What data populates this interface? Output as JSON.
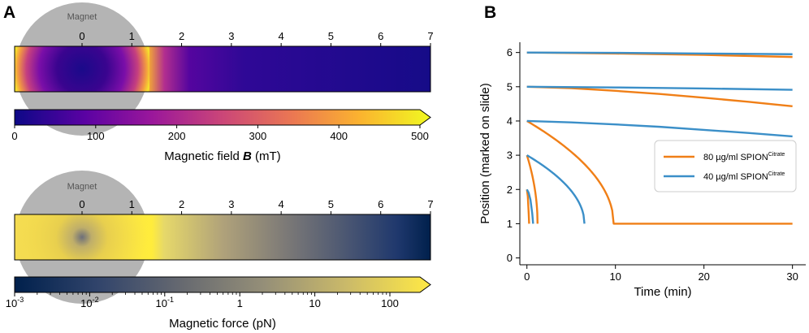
{
  "panel_labels": {
    "a": "A",
    "b": "B"
  },
  "colors": {
    "orange": "#f07f17",
    "blue": "#3b8fc8",
    "magnet_gray": "#b4b4b4",
    "plasma": [
      "#0d0887",
      "#5b02a3",
      "#9a179b",
      "#cb4678",
      "#eb7852",
      "#fbb32f",
      "#f0f921"
    ],
    "cividis": [
      "#00204c",
      "#31446b",
      "#666970",
      "#958f78",
      "#cbba69",
      "#ffe945"
    ]
  },
  "panel_a_top": {
    "magnet_label": "Magnet",
    "position_ticks": [
      "0",
      "1",
      "2",
      "3",
      "4",
      "5",
      "6",
      "7"
    ],
    "colorbar_ticks": [
      "0",
      "100",
      "200",
      "300",
      "400",
      "500"
    ],
    "colorbar_label_prefix": "Magnetic field ",
    "colorbar_label_symbol": "B",
    "colorbar_label_suffix": " (mT)"
  },
  "panel_a_bottom": {
    "magnet_label": "Magnet",
    "position_ticks": [
      "0",
      "1",
      "2",
      "3",
      "4",
      "5",
      "6",
      "7"
    ],
    "colorbar_ticks": [
      {
        "base": "10",
        "exp": "-3"
      },
      {
        "base": "10",
        "exp": "-2"
      },
      {
        "base": "10",
        "exp": "-1"
      },
      {
        "base": "1",
        "exp": ""
      },
      {
        "base": "10",
        "exp": ""
      },
      {
        "base": "100",
        "exp": ""
      }
    ],
    "colorbar_label": "Magnetic force (pN)"
  },
  "chart_data": {
    "type": "line",
    "xlabel": "Time (min)",
    "ylabel": "Position (marked on slide)",
    "xlim": [
      -0.8,
      31.5
    ],
    "ylim": [
      -0.2,
      6.3
    ],
    "xticks": [
      0,
      10,
      20,
      30
    ],
    "yticks": [
      0,
      1,
      2,
      3,
      4,
      5,
      6
    ],
    "legend": {
      "placement": "right",
      "entries": [
        {
          "text": "80 µg/ml SPION",
          "sup": "Citrate",
          "color": "#f07f17"
        },
        {
          "text": "40 µg/ml SPION",
          "sup": "Citrate",
          "color": "#3b8fc8"
        }
      ]
    },
    "series": [
      {
        "name": "80 µg/ml SPION Citrate, start 6",
        "color": "#f07f17",
        "start": 6,
        "x": [
          0,
          10,
          20,
          30
        ],
        "y": [
          6.0,
          5.97,
          5.93,
          5.87
        ]
      },
      {
        "name": "80 µg/ml SPION Citrate, start 5",
        "color": "#f07f17",
        "start": 5,
        "x": [
          0,
          5,
          10,
          15,
          20,
          25,
          30
        ],
        "y": [
          5.0,
          4.96,
          4.88,
          4.79,
          4.68,
          4.56,
          4.43
        ]
      },
      {
        "name": "80 µg/ml SPION Citrate, start 4",
        "color": "#f07f17",
        "start": 4,
        "x": [
          0,
          2,
          4,
          6,
          8,
          9,
          9.5,
          9.7,
          9.8,
          10,
          30
        ],
        "y": [
          4.0,
          3.82,
          3.58,
          3.22,
          2.58,
          2.0,
          1.5,
          1.2,
          1.0,
          1.0,
          1.0
        ]
      },
      {
        "name": "80 µg/ml SPION Citrate, start 3",
        "color": "#f07f17",
        "start": 3,
        "x": [
          0,
          0.4,
          0.8,
          1.0,
          1.1,
          1.2
        ],
        "y": [
          3.0,
          2.85,
          2.5,
          2.0,
          1.4,
          1.0
        ]
      },
      {
        "name": "80 µg/ml SPION Citrate, start 2",
        "color": "#f07f17",
        "start": 2,
        "x": [
          0,
          0.1,
          0.2,
          0.25
        ],
        "y": [
          2.0,
          1.8,
          1.3,
          1.0
        ]
      },
      {
        "name": "40 µg/ml SPION Citrate, start 6",
        "color": "#3b8fc8",
        "start": 6,
        "x": [
          0,
          10,
          20,
          30
        ],
        "y": [
          6.0,
          5.99,
          5.97,
          5.95
        ]
      },
      {
        "name": "40 µg/ml SPION Citrate, start 5",
        "color": "#3b8fc8",
        "start": 5,
        "x": [
          0,
          10,
          20,
          30
        ],
        "y": [
          5.0,
          4.98,
          4.95,
          4.91
        ]
      },
      {
        "name": "40 µg/ml SPION Citrate, start 4",
        "color": "#3b8fc8",
        "start": 4,
        "x": [
          0,
          5,
          10,
          15,
          20,
          25,
          30
        ],
        "y": [
          4.0,
          3.96,
          3.9,
          3.83,
          3.74,
          3.65,
          3.55
        ]
      },
      {
        "name": "40 µg/ml SPION Citrate, start 3",
        "color": "#3b8fc8",
        "start": 3,
        "x": [
          0,
          1,
          2,
          3,
          4,
          5,
          5.8,
          6.2,
          6.4,
          6.5
        ],
        "y": [
          3.0,
          2.95,
          2.87,
          2.75,
          2.58,
          2.35,
          2.0,
          1.6,
          1.25,
          1.0
        ]
      },
      {
        "name": "40 µg/ml SPION Citrate, start 2",
        "color": "#3b8fc8",
        "start": 2,
        "x": [
          0,
          0.2,
          0.4,
          0.6,
          0.7
        ],
        "y": [
          2.0,
          1.9,
          1.7,
          1.3,
          1.0
        ]
      }
    ]
  }
}
